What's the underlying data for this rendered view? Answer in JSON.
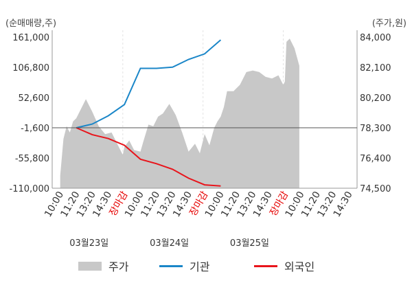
{
  "chart_data": {
    "type": "line",
    "left_axis_unit": "(순매매량,주)",
    "right_axis_unit": "(주가,원)",
    "left_ticks": [
      "161,000",
      "106,800",
      "52,600",
      "-1,600",
      "-55,800",
      "-110,000"
    ],
    "left_tick_values": [
      161000,
      106800,
      52600,
      -1600,
      -55800,
      -110000
    ],
    "right_ticks": [
      "84,000",
      "82,100",
      "80,200",
      "78,300",
      "76,400",
      "74,500"
    ],
    "right_tick_values": [
      84000,
      82100,
      80200,
      78300,
      76400,
      74500
    ],
    "left_ylim": [
      -110000,
      161000
    ],
    "right_ylim": [
      74500,
      84000
    ],
    "x_ticks": [
      "10:00",
      "11:20",
      "13:20",
      "14:30",
      "장마감",
      "10:00",
      "11:20",
      "13:20",
      "14:30",
      "장마감",
      "10:00",
      "11:20",
      "13:20",
      "14:30",
      "장마감",
      "10:00",
      "11:20",
      "13:20",
      "14:30"
    ],
    "x_tick_close_flags": [
      false,
      false,
      false,
      false,
      true,
      false,
      false,
      false,
      false,
      true,
      false,
      false,
      false,
      false,
      true,
      false,
      false,
      false,
      false
    ],
    "dates": [
      "03월23일",
      "03월24일",
      "03월25일"
    ],
    "series": [
      {
        "name": "주가",
        "kind": "area",
        "color": "#c8c8c8",
        "x": [
          0,
          0.2,
          0.4,
          0.6,
          0.8,
          1.0,
          1.3,
          1.6,
          2.0,
          2.4,
          2.8,
          3.2,
          3.6,
          3.9,
          4.0,
          4.3,
          4.6,
          5.0,
          5.2,
          5.5,
          5.8,
          6.1,
          6.4,
          6.8,
          7.2,
          7.6,
          8.0,
          8.4,
          8.7,
          9.0,
          9.3,
          9.6,
          9.8,
          10.0,
          10.2,
          10.4,
          10.6,
          10.8,
          11.0,
          11.2,
          11.6,
          12.0,
          12.4,
          12.8,
          13.2,
          13.6,
          13.9,
          14.0,
          14.1,
          14.3,
          14.6,
          14.9
        ],
        "values": [
          75300,
          77600,
          78400,
          78000,
          78700,
          78900,
          79500,
          80100,
          79300,
          78400,
          77900,
          78000,
          77200,
          76600,
          77100,
          77500,
          76900,
          76800,
          77500,
          78500,
          78400,
          79000,
          79200,
          79800,
          79100,
          78000,
          76800,
          77300,
          76700,
          77900,
          77200,
          78300,
          78700,
          79000,
          79600,
          80600,
          80600,
          80600,
          80800,
          81000,
          81800,
          81900,
          81800,
          81500,
          81400,
          81600,
          81000,
          81200,
          83700,
          83900,
          83300,
          82200
        ]
      },
      {
        "name": "기관",
        "color": "#1a86c8",
        "x": [
          1,
          2,
          3,
          4,
          5,
          6,
          7,
          8,
          9,
          10
        ],
        "values": [
          -1600,
          5000,
          20000,
          40000,
          105000,
          105000,
          107000,
          121000,
          131000,
          156000
        ]
      },
      {
        "name": "외국인",
        "color": "#e8141b",
        "x": [
          1,
          2,
          3,
          4,
          5,
          6,
          7,
          8,
          9,
          10
        ],
        "values": [
          -1600,
          -14000,
          -21000,
          -33000,
          -58000,
          -66000,
          -76000,
          -92000,
          -104000,
          -106000
        ]
      }
    ],
    "grid": false,
    "legend_position": "bottom"
  }
}
